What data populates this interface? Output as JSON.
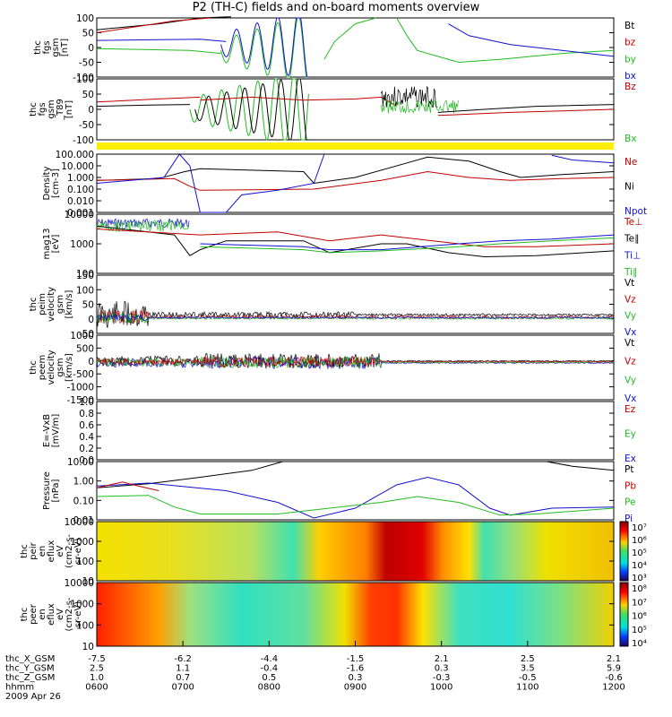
{
  "title": "P2 (TH-C) fields and on-board moments overview",
  "date_label": "2009 Apr 26",
  "chart_data": [
    {
      "id": "fgs",
      "type": "line",
      "ylabel": [
        "thc",
        "fgs",
        "gsm",
        "[nT]"
      ],
      "ylim": [
        -100,
        100
      ],
      "yticks": [
        "100",
        "50",
        "0",
        "-50",
        "-100"
      ],
      "legend": [
        {
          "text": "Bt",
          "color": "#000000"
        },
        {
          "text": "bz",
          "color": "#c00000"
        },
        {
          "text": "by",
          "color": "#22bb22"
        },
        {
          "text": "bx",
          "color": "#1010d0"
        }
      ]
    },
    {
      "id": "fgh",
      "type": "line",
      "ylabel": [
        "thc",
        "fgs",
        "gsm",
        "_T89",
        "[nT]"
      ],
      "ylim": [
        -125,
        125
      ],
      "yticks": [
        "100",
        "50",
        "0",
        "-50",
        "-100"
      ],
      "legend": [
        {
          "text": "Bz",
          "color": "#c00000"
        },
        {
          "text": "Bx",
          "color": "#22bb22"
        }
      ]
    },
    {
      "id": "density",
      "type": "line",
      "scale": "log",
      "ylabel": [
        "Density",
        "[cm-3]"
      ],
      "yticks": [
        "100.000",
        "10.000",
        "1.000",
        "0.100",
        "0.010",
        "0.001"
      ],
      "legend": [
        {
          "text": "Ne",
          "color": "#c00000"
        },
        {
          "text": "Ni",
          "color": "#000000"
        },
        {
          "text": "Npot",
          "color": "#1010d0"
        }
      ]
    },
    {
      "id": "temperature",
      "type": "line",
      "scale": "log",
      "ylabel": [
        "mag13",
        "[eV]"
      ],
      "yticks": [
        "10000",
        "1000",
        "100"
      ],
      "legend": [
        {
          "text": "Te⊥",
          "color": "#c00000"
        },
        {
          "text": "Te∥",
          "color": "#000000"
        },
        {
          "text": "Ti⊥",
          "color": "#1010d0"
        },
        {
          "text": "Ti∥",
          "color": "#22bb22"
        }
      ]
    },
    {
      "id": "peim",
      "type": "line",
      "ylabel": [
        "thc",
        "peim",
        "velocity",
        "gsm",
        "[km/s]"
      ],
      "ylim": [
        -50,
        150
      ],
      "yticks": [
        "150",
        "100",
        "50",
        "0",
        "-50"
      ],
      "legend": [
        {
          "text": "Vt",
          "color": "#000000"
        },
        {
          "text": "Vz",
          "color": "#c00000"
        },
        {
          "text": "Vy",
          "color": "#22bb22"
        },
        {
          "text": "Vx",
          "color": "#1010d0"
        }
      ]
    },
    {
      "id": "peem",
      "type": "line",
      "ylabel": [
        "thc",
        "peem",
        "velocity",
        "gsm",
        "[km/s]"
      ],
      "ylim": [
        -1500,
        1000
      ],
      "yticks": [
        "1000",
        "500",
        "0",
        "-500",
        "-1000",
        "-1500"
      ],
      "legend": [
        {
          "text": "Vt",
          "color": "#000000"
        },
        {
          "text": "Vz",
          "color": "#c00000"
        },
        {
          "text": "Vy",
          "color": "#22bb22"
        },
        {
          "text": "Vx",
          "color": "#1010d0"
        }
      ]
    },
    {
      "id": "efield",
      "type": "line",
      "ylabel": [
        "E=-VxB",
        "[mV/m]"
      ],
      "ylim": [
        0,
        1
      ],
      "yticks": [
        "1.0",
        "0.8",
        "0.6",
        "0.4",
        "0.2",
        "0.0"
      ],
      "legend": [
        {
          "text": "Ez",
          "color": "#c00000"
        },
        {
          "text": "Ey",
          "color": "#22bb22"
        },
        {
          "text": "Ex",
          "color": "#1010d0"
        }
      ]
    },
    {
      "id": "pressure",
      "type": "line",
      "scale": "log",
      "ylabel": [
        "Pressure",
        "[nPa]"
      ],
      "yticks": [
        "10.00",
        "1.00",
        "0.10",
        "0.01"
      ],
      "legend": [
        {
          "text": "Pt",
          "color": "#000000"
        },
        {
          "text": "Pb",
          "color": "#c00000"
        },
        {
          "text": "Pe",
          "color": "#22bb22"
        },
        {
          "text": "Pi",
          "color": "#1010d0"
        }
      ]
    },
    {
      "id": "peir",
      "type": "heatmap",
      "ylabel": [
        "thc",
        "peir",
        "en",
        "eflux",
        "eV",
        "(cm2-s-",
        "sr-eV)"
      ],
      "yticks": [
        "10000",
        "1000",
        "100",
        "10"
      ],
      "colorbar": [
        "10⁷",
        "10⁶",
        "10⁵",
        "10⁴",
        "10³"
      ]
    },
    {
      "id": "peer",
      "type": "heatmap",
      "ylabel": [
        "thc",
        "peer",
        "en",
        "eflux",
        "eV",
        "(cm2-s-",
        "sr-eV)"
      ],
      "yticks": [
        "10000",
        "1000",
        "100",
        "10"
      ],
      "colorbar": [
        "10⁸",
        "10⁷",
        "10⁶",
        "10⁵",
        "10⁴"
      ]
    }
  ],
  "x_axis": {
    "rows": [
      {
        "label": "thc_X_GSM",
        "values": [
          "-7.5",
          "-6.2",
          "-4.4",
          "-1.5",
          "2.1",
          "2.5",
          "2.1"
        ]
      },
      {
        "label": "thc_Y_GSM",
        "values": [
          "2.5",
          "1.1",
          "-0.4",
          "-1.6",
          "0.3",
          "3.5",
          "5.9"
        ]
      },
      {
        "label": "thc_Z_GSM",
        "values": [
          "1.0",
          "0.7",
          "0.5",
          "0.3",
          "-0.3",
          "-0.5",
          "-0.6"
        ]
      },
      {
        "label": "hhmm",
        "values": [
          "0600",
          "0700",
          "0800",
          "0900",
          "1000",
          "1100",
          "1200"
        ]
      }
    ]
  },
  "colors": {
    "black": "#000000",
    "red": "#c00000",
    "green": "#22bb22",
    "blue": "#1010d0",
    "yellow": "#ffee00"
  }
}
